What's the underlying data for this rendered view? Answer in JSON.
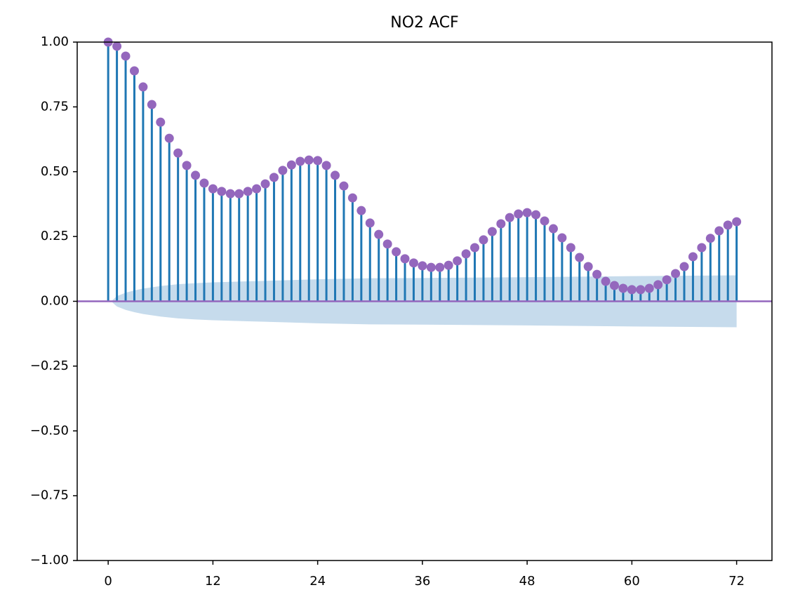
{
  "chart_data": {
    "type": "stem",
    "title": "NO2 ACF",
    "x": [
      0,
      1,
      2,
      3,
      4,
      5,
      6,
      7,
      8,
      9,
      10,
      11,
      12,
      13,
      14,
      15,
      16,
      17,
      18,
      19,
      20,
      21,
      22,
      23,
      24,
      25,
      26,
      27,
      28,
      29,
      30,
      31,
      32,
      33,
      34,
      35,
      36,
      37,
      38,
      39,
      40,
      41,
      42,
      43,
      44,
      45,
      46,
      47,
      48,
      49,
      50,
      51,
      52,
      53,
      54,
      55,
      56,
      57,
      58,
      59,
      60,
      61,
      62,
      63,
      64,
      65,
      66,
      67,
      68,
      69,
      70,
      71,
      72
    ],
    "values": [
      1.0,
      0.984,
      0.946,
      0.889,
      0.827,
      0.759,
      0.691,
      0.629,
      0.572,
      0.524,
      0.486,
      0.456,
      0.434,
      0.424,
      0.415,
      0.415,
      0.424,
      0.434,
      0.453,
      0.478,
      0.505,
      0.526,
      0.54,
      0.545,
      0.543,
      0.524,
      0.486,
      0.445,
      0.399,
      0.35,
      0.302,
      0.258,
      0.221,
      0.191,
      0.164,
      0.148,
      0.137,
      0.131,
      0.131,
      0.139,
      0.156,
      0.183,
      0.207,
      0.237,
      0.269,
      0.299,
      0.323,
      0.337,
      0.342,
      0.334,
      0.31,
      0.28,
      0.245,
      0.207,
      0.169,
      0.134,
      0.104,
      0.077,
      0.061,
      0.05,
      0.045,
      0.045,
      0.05,
      0.064,
      0.083,
      0.107,
      0.134,
      0.172,
      0.207,
      0.243,
      0.272,
      0.294,
      0.307
    ],
    "stem_color": "#1f77b4",
    "marker_color": "#9467bd",
    "confidence_band": {
      "color": "#c6dbec",
      "x": [
        0.5,
        1,
        2,
        3,
        4,
        6,
        8,
        10,
        12,
        16,
        20,
        24,
        30,
        36,
        48,
        60,
        72
      ],
      "upper": [
        0.005,
        0.02,
        0.033,
        0.042,
        0.049,
        0.059,
        0.066,
        0.07,
        0.073,
        0.077,
        0.081,
        0.085,
        0.089,
        0.09,
        0.093,
        0.097,
        0.1
      ],
      "lower": [
        -0.005,
        -0.02,
        -0.033,
        -0.042,
        -0.049,
        -0.059,
        -0.066,
        -0.07,
        -0.073,
        -0.077,
        -0.081,
        -0.085,
        -0.089,
        -0.09,
        -0.093,
        -0.097,
        -0.1
      ]
    },
    "xlim": [
      -3.55,
      76.05
    ],
    "ylim": [
      -1.0,
      1.0
    ],
    "xticks": [
      0,
      12,
      24,
      36,
      48,
      60,
      72
    ],
    "yticks": [
      {
        "value": -1.0,
        "label": "−1.00"
      },
      {
        "value": -0.75,
        "label": "−0.75"
      },
      {
        "value": -0.5,
        "label": "−0.50"
      },
      {
        "value": -0.25,
        "label": "−0.25"
      },
      {
        "value": 0.0,
        "label": "0.00"
      },
      {
        "value": 0.25,
        "label": "0.25"
      },
      {
        "value": 0.5,
        "label": "0.50"
      },
      {
        "value": 0.75,
        "label": "0.75"
      },
      {
        "value": 1.0,
        "label": "1.00"
      }
    ]
  }
}
